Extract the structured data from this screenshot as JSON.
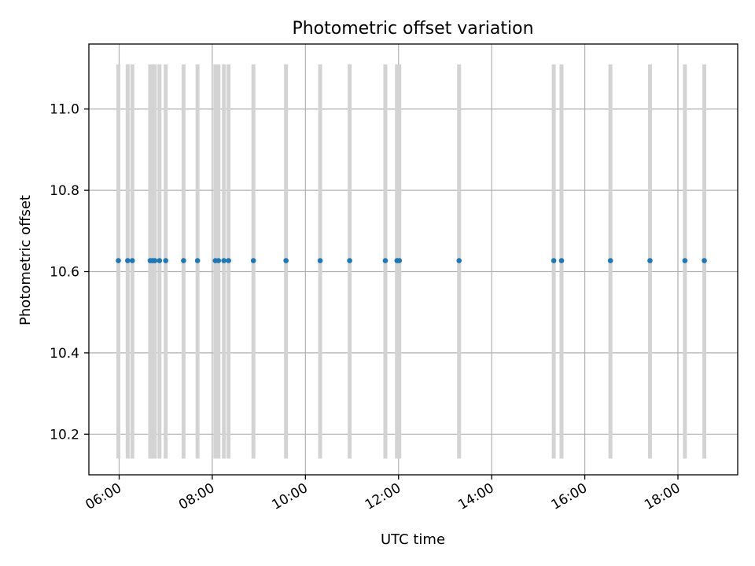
{
  "chart_data": {
    "type": "scatter",
    "title": "Photometric offset variation",
    "xlabel": "UTC time",
    "ylabel": "Photometric offset",
    "xlim": [
      "05:21",
      "19:17"
    ],
    "ylim": [
      10.1,
      11.16
    ],
    "x_ticks": [
      "06:00",
      "08:00",
      "10:00",
      "12:00",
      "14:00",
      "16:00",
      "18:00"
    ],
    "y_ticks": [
      10.2,
      10.4,
      10.6,
      10.8,
      11.0
    ],
    "grid": true,
    "marker_color": "#1f77b4",
    "vline_color": "#d3d3d3",
    "vline_range": [
      10.14,
      11.11
    ],
    "points": [
      {
        "x": "05:59",
        "y": 10.627
      },
      {
        "x": "06:11",
        "y": 10.627
      },
      {
        "x": "06:17",
        "y": 10.627
      },
      {
        "x": "06:40",
        "y": 10.627
      },
      {
        "x": "06:43",
        "y": 10.627
      },
      {
        "x": "06:46",
        "y": 10.627
      },
      {
        "x": "06:52",
        "y": 10.627
      },
      {
        "x": "07:00",
        "y": 10.627
      },
      {
        "x": "07:23",
        "y": 10.627
      },
      {
        "x": "07:41",
        "y": 10.627
      },
      {
        "x": "08:04",
        "y": 10.627
      },
      {
        "x": "08:08",
        "y": 10.627
      },
      {
        "x": "08:15",
        "y": 10.627
      },
      {
        "x": "08:21",
        "y": 10.627
      },
      {
        "x": "08:53",
        "y": 10.627
      },
      {
        "x": "09:35",
        "y": 10.627
      },
      {
        "x": "10:19",
        "y": 10.627
      },
      {
        "x": "10:57",
        "y": 10.627
      },
      {
        "x": "11:43",
        "y": 10.627
      },
      {
        "x": "11:58",
        "y": 10.627
      },
      {
        "x": "12:01",
        "y": 10.627
      },
      {
        "x": "13:18",
        "y": 10.627
      },
      {
        "x": "15:20",
        "y": 10.627
      },
      {
        "x": "15:30",
        "y": 10.627
      },
      {
        "x": "16:33",
        "y": 10.627
      },
      {
        "x": "17:24",
        "y": 10.627
      },
      {
        "x": "18:09",
        "y": 10.627
      },
      {
        "x": "18:34",
        "y": 10.627
      }
    ]
  }
}
